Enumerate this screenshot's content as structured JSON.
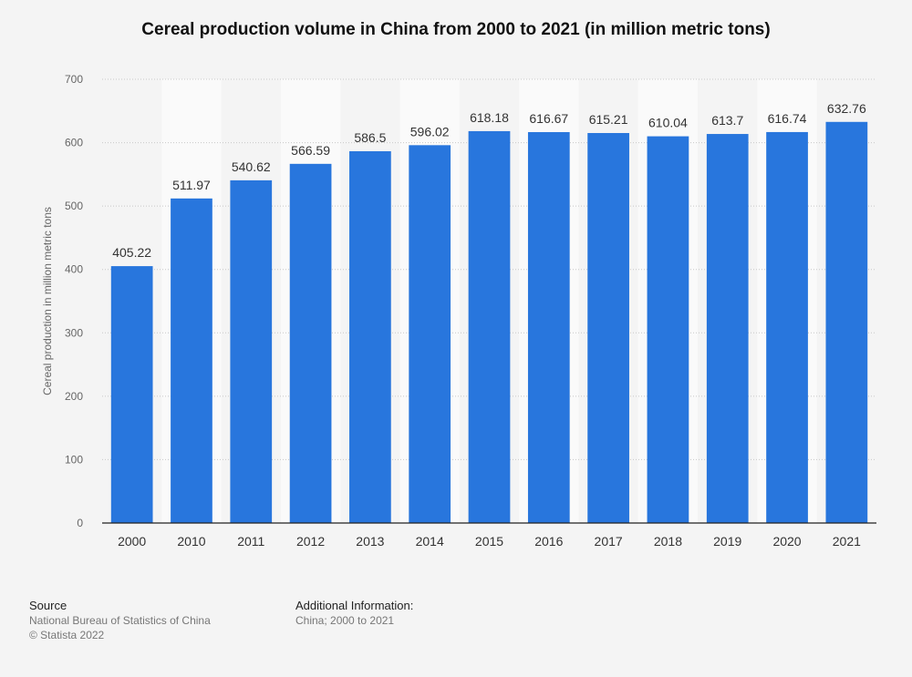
{
  "chart_data": {
    "type": "bar",
    "title": "Cereal production volume in China from 2000 to 2021 (in million metric tons)",
    "xlabel": "",
    "ylabel": "Cereal production in million metric tons",
    "ylim": [
      0,
      700
    ],
    "yticks": [
      0,
      100,
      200,
      300,
      400,
      500,
      600,
      700
    ],
    "categories": [
      "2000",
      "2010",
      "2011",
      "2012",
      "2013",
      "2014",
      "2015",
      "2016",
      "2017",
      "2018",
      "2019",
      "2020",
      "2021"
    ],
    "values": [
      405.22,
      511.97,
      540.62,
      566.59,
      586.5,
      596.02,
      618.18,
      616.67,
      615.21,
      610.04,
      613.7,
      616.74,
      632.76
    ],
    "value_labels": [
      "405.22",
      "511.97",
      "540.62",
      "566.59",
      "586.5",
      "596.02",
      "618.18",
      "616.67",
      "615.21",
      "610.04",
      "613.7",
      "616.74",
      "632.76"
    ],
    "bar_color": "#2876dd",
    "grid": true
  },
  "footer": {
    "source_heading": "Source",
    "source_line1": "National Bureau of Statistics of China",
    "source_line2": "© Statista 2022",
    "info_heading": "Additional Information:",
    "info_line1": "China; 2000 to 2021"
  }
}
